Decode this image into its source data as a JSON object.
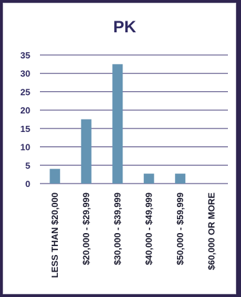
{
  "chart_data": {
    "type": "bar",
    "title": "PK",
    "categories": [
      "LESS THAN $20,000",
      "$20,000 - $29,999",
      "$30,000 - $39,999",
      "$40,000 - $49,999",
      "$50,000 - $59,999",
      "$60,000 OR MORE"
    ],
    "values": [
      4,
      17.5,
      32.5,
      2.7,
      2.7,
      0
    ],
    "yticks": [
      "0",
      "5",
      "10",
      "15",
      "20",
      "25",
      "30",
      "35"
    ],
    "ylim": [
      0,
      35
    ],
    "grid": true,
    "legend": "none",
    "xlabel": "",
    "ylabel": "",
    "colors": {
      "bar": "#6494b3",
      "title": "#2f2a63",
      "grid": "#3a3370",
      "background": "#ffffff",
      "frame": "#2f2550"
    }
  }
}
